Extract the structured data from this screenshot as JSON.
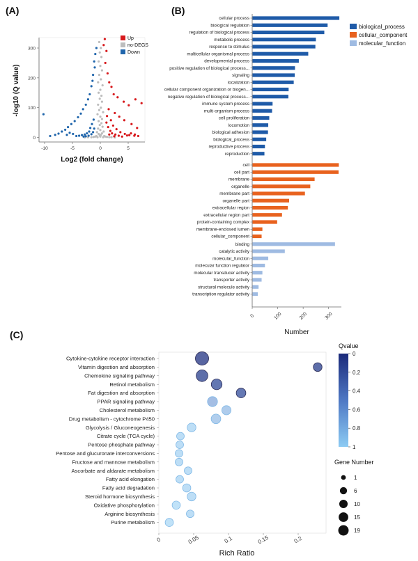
{
  "panel_labels": [
    "(A)",
    "(B)",
    "(C)"
  ],
  "colors": {
    "up": "#d7191c",
    "nodeg": "#bdbdbd",
    "down": "#2166ac",
    "bp": "#1f5ba8",
    "cc": "#e8621e",
    "mf": "#9fbbe2",
    "q_low": "#1b2a7a",
    "q_high": "#8ccbf3"
  },
  "chart_data": [
    {
      "type": "scatter",
      "panel": "A",
      "xlabel": "Log2 (fold change)",
      "ylabel": "-log10 (Q value)",
      "xlim": [
        -11,
        8
      ],
      "ylim": [
        -15,
        335
      ],
      "xticks": [
        -10,
        -5,
        0,
        5
      ],
      "yticks": [
        0,
        100,
        200,
        300
      ],
      "legend": {
        "position": "top-right",
        "entries": [
          "Up",
          "no-DEGS",
          "Down"
        ]
      },
      "series": [
        {
          "name": "Up",
          "points": [
            [
              0.6,
              310
            ],
            [
              0.8,
              330
            ],
            [
              1.1,
              290
            ],
            [
              0.9,
              250
            ],
            [
              1.3,
              215
            ],
            [
              1.6,
              185
            ],
            [
              2.0,
              170
            ],
            [
              2.4,
              145
            ],
            [
              3.1,
              135
            ],
            [
              4.2,
              120
            ],
            [
              5.1,
              108
            ],
            [
              6.3,
              128
            ],
            [
              7.4,
              115
            ],
            [
              1.5,
              95
            ],
            [
              2.6,
              82
            ],
            [
              3.4,
              70
            ],
            [
              4.3,
              58
            ],
            [
              5.6,
              45
            ],
            [
              6.6,
              32
            ],
            [
              1.2,
              72
            ],
            [
              1.9,
              58
            ],
            [
              2.3,
              40
            ],
            [
              2.9,
              28
            ],
            [
              3.6,
              18
            ],
            [
              4.4,
              12
            ],
            [
              5.2,
              8
            ],
            [
              6.1,
              6
            ],
            [
              6.8,
              5
            ],
            [
              1.4,
              35
            ],
            [
              1.8,
              22
            ],
            [
              2.1,
              14
            ],
            [
              2.7,
              10
            ],
            [
              3.3,
              6
            ],
            [
              1.1,
              50
            ],
            [
              1.6,
              10
            ],
            [
              2.5,
              4
            ],
            [
              3.9,
              3
            ],
            [
              4.8,
              7
            ],
            [
              5.5,
              14
            ],
            [
              6.2,
              10
            ]
          ]
        },
        {
          "name": "Down",
          "points": [
            [
              -0.7,
              300
            ],
            [
              -0.9,
              280
            ],
            [
              -1.1,
              255
            ],
            [
              -1.0,
              235
            ],
            [
              -1.3,
              210
            ],
            [
              -1.4,
              190
            ],
            [
              -1.6,
              172
            ],
            [
              -1.9,
              145
            ],
            [
              -2.2,
              128
            ],
            [
              -2.6,
              110
            ],
            [
              -3.1,
              95
            ],
            [
              -3.5,
              80
            ],
            [
              -4.0,
              68
            ],
            [
              -4.6,
              55
            ],
            [
              -5.2,
              45
            ],
            [
              -5.8,
              35
            ],
            [
              -6.3,
              26
            ],
            [
              -6.9,
              20
            ],
            [
              -7.5,
              13
            ],
            [
              -8.1,
              9
            ],
            [
              -9.0,
              5
            ],
            [
              -10.2,
              78
            ],
            [
              -1.2,
              60
            ],
            [
              -1.5,
              45
            ],
            [
              -1.8,
              32
            ],
            [
              -2.0,
              20
            ],
            [
              -2.4,
              14
            ],
            [
              -2.8,
              10
            ],
            [
              -3.3,
              8
            ],
            [
              -3.8,
              6
            ],
            [
              -4.3,
              5
            ],
            [
              -4.9,
              12
            ],
            [
              -5.5,
              16
            ],
            [
              -6.0,
              9
            ],
            [
              -1.1,
              30
            ],
            [
              -1.3,
              18
            ],
            [
              -1.6,
              11
            ],
            [
              -2.1,
              6
            ],
            [
              -2.6,
              4
            ],
            [
              -3.0,
              3
            ]
          ]
        },
        {
          "name": "no-DEGS",
          "points": [
            [
              -0.2,
              320
            ],
            [
              0.1,
              300
            ],
            [
              -0.1,
              285
            ],
            [
              0.2,
              270
            ],
            [
              -0.3,
              255
            ],
            [
              0.0,
              240
            ],
            [
              0.3,
              225
            ],
            [
              -0.2,
              210
            ],
            [
              0.1,
              195
            ],
            [
              -0.4,
              185
            ],
            [
              0.4,
              175
            ],
            [
              0.0,
              160
            ],
            [
              -0.3,
              150
            ],
            [
              0.2,
              140
            ],
            [
              -0.1,
              130
            ],
            [
              0.3,
              120
            ],
            [
              -0.4,
              110
            ],
            [
              0.1,
              100
            ],
            [
              -0.2,
              92
            ],
            [
              0.5,
              85
            ],
            [
              -0.5,
              78
            ],
            [
              0.0,
              70
            ],
            [
              0.3,
              62
            ],
            [
              -0.3,
              55
            ],
            [
              0.2,
              48
            ],
            [
              -0.1,
              42
            ],
            [
              0.4,
              36
            ],
            [
              -0.4,
              30
            ],
            [
              0.0,
              25
            ],
            [
              0.6,
              20
            ],
            [
              -0.6,
              18
            ],
            [
              0.3,
              14
            ],
            [
              -0.3,
              12
            ],
            [
              0.1,
              9
            ],
            [
              -0.1,
              7
            ],
            [
              0.7,
              5
            ],
            [
              -0.7,
              5
            ],
            [
              0.9,
              3
            ],
            [
              -0.9,
              3
            ],
            [
              1.2,
              2
            ],
            [
              -1.2,
              2
            ],
            [
              1.6,
              1
            ],
            [
              -1.6,
              1
            ],
            [
              2.0,
              1
            ],
            [
              -2.2,
              1
            ],
            [
              2.6,
              0.5
            ],
            [
              -2.8,
              0.5
            ],
            [
              0.0,
              3
            ],
            [
              0.5,
              1
            ],
            [
              -0.5,
              1
            ]
          ]
        }
      ]
    },
    {
      "type": "bar",
      "panel": "B",
      "orientation": "horizontal",
      "xlabel": "Number",
      "ylabel": "",
      "xlim": [
        0,
        350
      ],
      "xticks": [
        0,
        100,
        200,
        300
      ],
      "legend": {
        "position": "top-right",
        "entries": [
          "biological_process",
          "cellular_component",
          "molecular_function"
        ]
      },
      "groups": [
        {
          "name": "biological_process",
          "categories": [
            "cellular process",
            "biological regulation",
            "regulation of biological process",
            "metabolic process",
            "response to stimulus",
            "multicellular organismal process",
            "developmental process",
            "positive regulation of biological process...",
            "signaling",
            "localization",
            "cellular component organization or biogen...",
            "negative regulation of biological process...",
            "immune system process",
            "multi-organism process",
            "cell proliferation",
            "locomotion",
            "biological adhesion",
            "biological_process",
            "reproductive process",
            "reproduction"
          ],
          "values": [
            342,
            296,
            283,
            250,
            248,
            220,
            183,
            168,
            167,
            163,
            143,
            142,
            80,
            78,
            67,
            63,
            62,
            55,
            50,
            48
          ]
        },
        {
          "name": "cellular_component",
          "categories": [
            "cell",
            "cell part",
            "membrane",
            "organelle",
            "membrane part",
            "organelle part",
            "extracellular region",
            "extracellular region part",
            "protein-containing complex",
            "membrane-enclosed lumen",
            "cellular_component"
          ],
          "values": [
            340,
            339,
            245,
            228,
            207,
            145,
            140,
            117,
            98,
            40,
            37
          ]
        },
        {
          "name": "molecular_function",
          "categories": [
            "binding",
            "catalytic activity",
            "molecular_function",
            "molecular function regulator",
            "molecular transducer activity",
            "transporter activity",
            "structural molecule activity",
            "transcription regulator activity"
          ],
          "values": [
            325,
            128,
            63,
            50,
            40,
            37,
            25,
            22
          ]
        }
      ]
    },
    {
      "type": "scatter",
      "panel": "C",
      "xlabel": "Rich Ratio",
      "ylabel": "",
      "xlim": [
        0,
        0.24
      ],
      "xticks": [
        0,
        0.05,
        0.1,
        0.15,
        0.2
      ],
      "xtick_labels": [
        "0",
        "0.05",
        "0.1",
        "0.15",
        "0.2"
      ],
      "colorbar": {
        "title": "Qvalue",
        "range": [
          0,
          1
        ],
        "ticks": [
          0,
          0.2,
          0.4,
          0.6,
          0.8,
          1
        ],
        "tick_labels": [
          "0",
          "0.2",
          "0.4",
          "0.6",
          "0.8",
          "1"
        ]
      },
      "size_legend": {
        "title": "Gene Number",
        "values": [
          1,
          6,
          10,
          15,
          19
        ],
        "labels": [
          "1",
          "6",
          "10",
          "15",
          "19"
        ]
      },
      "pathways": [
        {
          "name": "Cytokine-cytokine receptor interaction",
          "rich_ratio": 0.062,
          "genes": 19,
          "q": 0.05
        },
        {
          "name": "Vitamin digestion and absorption",
          "rich_ratio": 0.228,
          "genes": 5,
          "q": 0.12
        },
        {
          "name": "Chemokine signaling pathway",
          "rich_ratio": 0.062,
          "genes": 13,
          "q": 0.12
        },
        {
          "name": "Retinol metabolism",
          "rich_ratio": 0.083,
          "genes": 10,
          "q": 0.2
        },
        {
          "name": "Fat digestion and absorption",
          "rich_ratio": 0.118,
          "genes": 7,
          "q": 0.22
        },
        {
          "name": "PPAR signaling pathway",
          "rich_ratio": 0.077,
          "genes": 8,
          "q": 0.6
        },
        {
          "name": "Cholesterol metabolism",
          "rich_ratio": 0.097,
          "genes": 6,
          "q": 0.75
        },
        {
          "name": "Drug metabolism - cytochrome P450",
          "rich_ratio": 0.082,
          "genes": 7,
          "q": 0.78
        },
        {
          "name": "Glycolysis / Gluconeogenesis",
          "rich_ratio": 0.047,
          "genes": 5,
          "q": 0.95
        },
        {
          "name": "Citrate cycle (TCA cycle)",
          "rich_ratio": 0.031,
          "genes": 3,
          "q": 0.95
        },
        {
          "name": "Pentose phosphate pathway",
          "rich_ratio": 0.03,
          "genes": 3,
          "q": 0.95
        },
        {
          "name": "Pentose and glucuronate interconversions",
          "rich_ratio": 0.029,
          "genes": 3,
          "q": 0.95
        },
        {
          "name": "Fructose and mannose metabolism",
          "rich_ratio": 0.029,
          "genes": 3,
          "q": 0.95
        },
        {
          "name": "Ascorbate and aldarate metabolism",
          "rich_ratio": 0.042,
          "genes": 3,
          "q": 0.95
        },
        {
          "name": "Fatty acid elongation",
          "rich_ratio": 0.03,
          "genes": 3,
          "q": 0.95
        },
        {
          "name": "Fatty acid degradation",
          "rich_ratio": 0.04,
          "genes": 4,
          "q": 0.95
        },
        {
          "name": "Steroid hormone biosynthesis",
          "rich_ratio": 0.047,
          "genes": 5,
          "q": 0.95
        },
        {
          "name": "Oxidative phosphorylation",
          "rich_ratio": 0.025,
          "genes": 4,
          "q": 1.0
        },
        {
          "name": "Arginine biosynthesis",
          "rich_ratio": 0.045,
          "genes": 3,
          "q": 0.95
        },
        {
          "name": "Purine metabolism",
          "rich_ratio": 0.015,
          "genes": 4,
          "q": 1.0
        }
      ]
    }
  ]
}
